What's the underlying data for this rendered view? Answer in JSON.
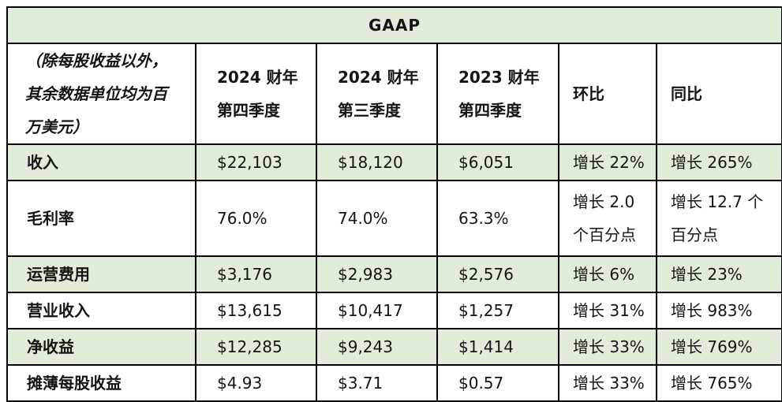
{
  "title": "GAAP",
  "colors": {
    "band_green": "#e2ecda",
    "border": "#000000",
    "text": "#141414",
    "page_bg": "#ffffff"
  },
  "header": {
    "note_lines": [
      "（除每股收益以外，",
      "其余数据单位均为百",
      "万美元）"
    ],
    "col_q4_fy24": [
      "2024 财年",
      "第四季度"
    ],
    "col_q3_fy24": [
      "2024 财年",
      "第三季度"
    ],
    "col_q4_fy23": [
      "2023 财年",
      "第四季度"
    ],
    "col_qoq": "环比",
    "col_yoy": "同比"
  },
  "rows": [
    {
      "label": "收入",
      "cells": [
        "$22,103",
        "$18,120",
        "$6,051",
        "增长 22%",
        "增长 265%"
      ]
    },
    {
      "label": "毛利率",
      "cells": [
        "76.0%",
        "74.0%",
        "63.3%",
        [
          "增长 2.0",
          "个百分点"
        ],
        [
          "增长 12.7 个",
          "百分点"
        ]
      ]
    },
    {
      "label": "运营费用",
      "cells": [
        "$3,176",
        "$2,983",
        "$2,576",
        "增长 6%",
        "增长 23%"
      ]
    },
    {
      "label": "营业收入",
      "cells": [
        "$13,615",
        "$10,417",
        "$1,257",
        "增长 31%",
        "增长 983%"
      ]
    },
    {
      "label": "净收益",
      "cells": [
        "$12,285",
        "$9,243",
        "$1,414",
        "增长 33%",
        "增长 769%"
      ]
    },
    {
      "label": "摊薄每股收益",
      "cells": [
        "$4.93",
        "$3.71",
        "$0.57",
        "增长 33%",
        "增长 765%"
      ]
    }
  ]
}
